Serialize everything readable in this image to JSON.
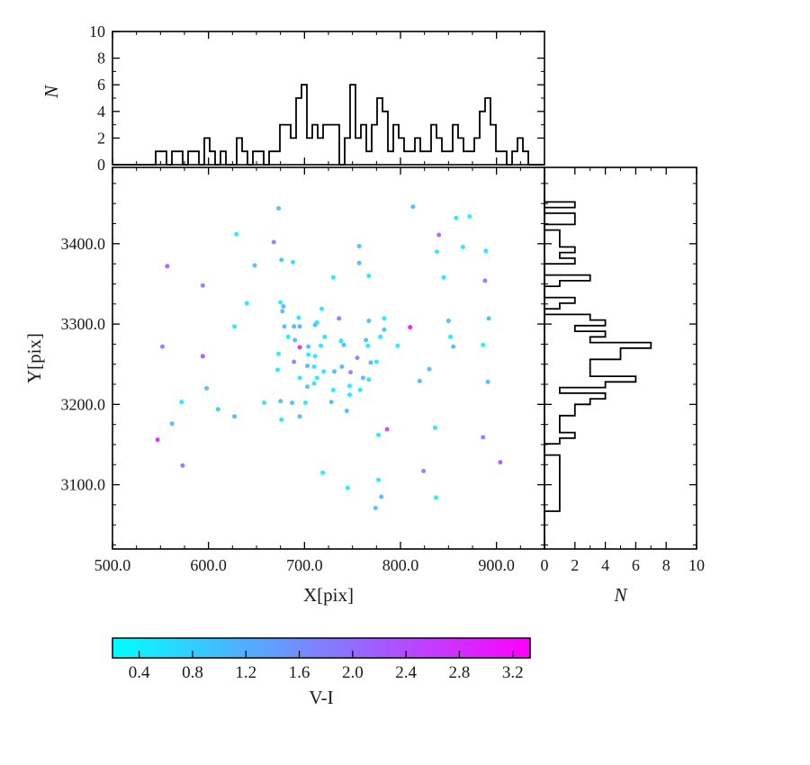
{
  "figure": {
    "background": "#ffffff",
    "line_color": "#000000"
  },
  "chart_data": [
    {
      "id": "top-histogram",
      "type": "bar",
      "subtype": "histogram-step",
      "orientation": "vertical",
      "ylabel": "N",
      "xlim": [
        500,
        950
      ],
      "ylim": [
        0,
        10
      ],
      "yticks": [
        0,
        2,
        4,
        6,
        8,
        10
      ],
      "ytick_labels": [
        "0",
        "2",
        "4",
        "6",
        "8",
        "10"
      ],
      "minor_step_x": 25,
      "minor_step_y": 1,
      "bin_start": 500,
      "bin_width": 5.625,
      "counts": [
        0,
        0,
        0,
        0,
        0,
        0,
        0,
        0,
        1,
        1,
        0,
        1,
        1,
        0,
        1,
        1,
        0,
        2,
        1,
        0,
        1,
        0,
        0,
        2,
        1,
        0,
        1,
        1,
        0,
        1,
        1,
        3,
        3,
        2,
        5,
        6,
        2,
        3,
        2,
        3,
        3,
        3,
        0,
        2,
        6,
        2,
        3,
        1,
        3,
        5,
        4,
        1,
        3,
        2,
        1,
        1,
        2,
        1,
        1,
        3,
        2,
        1,
        1,
        3,
        2,
        1,
        1,
        2,
        4,
        5,
        3,
        1,
        1,
        0,
        1,
        2,
        1,
        0,
        0,
        0
      ]
    },
    {
      "id": "main-scatter",
      "type": "scatter",
      "xlabel": "X[pix]",
      "ylabel": "Y[pix]",
      "xlim": [
        500,
        950
      ],
      "ylim": [
        3020,
        3495
      ],
      "xticks": [
        500,
        600,
        700,
        800,
        900
      ],
      "xtick_labels": [
        "500.0",
        "600.0",
        "700.0",
        "800.0",
        "900.0"
      ],
      "yticks": [
        3100,
        3200,
        3300,
        3400
      ],
      "ytick_labels": [
        "3100.0",
        "3200.0",
        "3300.0",
        "3400.0"
      ],
      "minor_step_x": 25,
      "minor_step_y": 25,
      "colormap": "cool",
      "color_range": [
        0.2,
        3.33
      ],
      "marker_radius": 2.5,
      "points": [
        [
          673,
          3444,
          0.95
        ],
        [
          813,
          3446,
          1.1
        ],
        [
          858,
          3432,
          0.4
        ],
        [
          872,
          3434,
          0.45
        ],
        [
          629,
          3412,
          0.5
        ],
        [
          668,
          3402,
          1.9
        ],
        [
          840,
          3411,
          2.15
        ],
        [
          757,
          3397,
          1.0
        ],
        [
          865,
          3396,
          0.5
        ],
        [
          838,
          3390,
          0.45
        ],
        [
          889,
          3391,
          0.55
        ],
        [
          557,
          3372,
          2.3
        ],
        [
          648,
          3373,
          1.05
        ],
        [
          676,
          3380,
          1.0
        ],
        [
          688,
          3377,
          0.5
        ],
        [
          757,
          3376,
          1.1
        ],
        [
          730,
          3358,
          0.5
        ],
        [
          767,
          3360,
          0.45
        ],
        [
          845,
          3358,
          0.5
        ],
        [
          888,
          3354,
          1.9
        ],
        [
          594,
          3348,
          1.85
        ],
        [
          640,
          3326,
          0.5
        ],
        [
          678,
          3322,
          1.1
        ],
        [
          627,
          3297,
          0.5
        ],
        [
          713,
          3302,
          0.5
        ],
        [
          850,
          3304,
          1.05
        ],
        [
          892,
          3307,
          1.0
        ],
        [
          852,
          3284,
          0.5
        ],
        [
          855,
          3272,
          1.1
        ],
        [
          886,
          3274,
          0.5
        ],
        [
          552,
          3272,
          1.9
        ],
        [
          675,
          3327,
          0.4
        ],
        [
          677,
          3316,
          1.1
        ],
        [
          718,
          3319,
          0.45
        ],
        [
          694,
          3308,
          0.5
        ],
        [
          736,
          3307,
          1.9
        ],
        [
          679,
          3297,
          1.05
        ],
        [
          689,
          3297,
          1.1
        ],
        [
          695,
          3297,
          1.15
        ],
        [
          711,
          3299,
          1.0
        ],
        [
          767,
          3304,
          1.1
        ],
        [
          783,
          3307,
          0.5
        ],
        [
          810,
          3296,
          3.25
        ],
        [
          783,
          3293,
          1.0
        ],
        [
          683,
          3284,
          0.45
        ],
        [
          690,
          3280,
          1.1
        ],
        [
          721,
          3284,
          0.5
        ],
        [
          738,
          3279,
          0.45
        ],
        [
          764,
          3280,
          1.0
        ],
        [
          779,
          3284,
          0.5
        ],
        [
          695,
          3271,
          2.9
        ],
        [
          704,
          3272,
          1.0
        ],
        [
          717,
          3273,
          0.5
        ],
        [
          741,
          3274,
          1.05
        ],
        [
          766,
          3273,
          0.45
        ],
        [
          797,
          3273,
          0.5
        ],
        [
          673,
          3263,
          0.4
        ],
        [
          704,
          3262,
          0.5
        ],
        [
          711,
          3260,
          0.45
        ],
        [
          755,
          3258,
          1.8
        ],
        [
          769,
          3252,
          1.1
        ],
        [
          775,
          3253,
          0.5
        ],
        [
          689,
          3253,
          1.85
        ],
        [
          703,
          3248,
          1.1
        ],
        [
          672,
          3243,
          0.45
        ],
        [
          710,
          3247,
          0.5
        ],
        [
          720,
          3241,
          0.45
        ],
        [
          731,
          3241,
          1.05
        ],
        [
          739,
          3247,
          1.1
        ],
        [
          748,
          3240,
          1.8
        ],
        [
          761,
          3233,
          1.0
        ],
        [
          767,
          3231,
          0.5
        ],
        [
          695,
          3233,
          0.45
        ],
        [
          713,
          3233,
          0.5
        ],
        [
          830,
          3244,
          1.1
        ],
        [
          703,
          3222,
          1.05
        ],
        [
          710,
          3226,
          0.5
        ],
        [
          747,
          3223,
          0.45
        ],
        [
          758,
          3218,
          0.5
        ],
        [
          820,
          3229,
          1.1
        ],
        [
          730,
          3218,
          0.45
        ],
        [
          747,
          3212,
          0.5
        ],
        [
          701,
          3202,
          0.5
        ],
        [
          687,
          3202,
          1.0
        ],
        [
          728,
          3203,
          1.1
        ],
        [
          744,
          3192,
          1.05
        ],
        [
          695,
          3185,
          1.1
        ],
        [
          676,
          3181,
          0.5
        ],
        [
          786,
          3169,
          2.5
        ],
        [
          836,
          3171,
          0.5
        ],
        [
          891,
          3228,
          1.1
        ],
        [
          886,
          3159,
          1.9
        ],
        [
          904,
          3128,
          2.4
        ],
        [
          824,
          3117,
          1.9
        ],
        [
          777,
          3162,
          0.5
        ],
        [
          777,
          3106,
          0.5
        ],
        [
          745,
          3096,
          0.45
        ],
        [
          780,
          3085,
          1.1
        ],
        [
          774,
          3071,
          1.0
        ],
        [
          837,
          3084,
          0.5
        ],
        [
          719,
          3115,
          0.5
        ],
        [
          598,
          3220,
          1.0
        ],
        [
          572,
          3203,
          0.6
        ],
        [
          610,
          3194,
          0.9
        ],
        [
          627,
          3185,
          1.1
        ],
        [
          658,
          3202,
          0.6
        ],
        [
          562,
          3176,
          1.05
        ],
        [
          547,
          3156,
          2.9
        ],
        [
          573,
          3124,
          2.0
        ],
        [
          675,
          3204,
          1.0
        ],
        [
          594,
          3260,
          2.5
        ]
      ]
    },
    {
      "id": "right-histogram",
      "type": "bar",
      "subtype": "histogram-step",
      "orientation": "horizontal",
      "xlabel": "N",
      "xlim": [
        0,
        10
      ],
      "ylim": [
        3020,
        3495
      ],
      "xticks": [
        0,
        2,
        4,
        6,
        8,
        10
      ],
      "xtick_labels": [
        "0",
        "2",
        "4",
        "6",
        "8",
        "10"
      ],
      "minor_step_x": 1,
      "minor_step_y": 25,
      "bin_start": 3060,
      "bin_width": 7,
      "counts": [
        0,
        1,
        1,
        1,
        1,
        1,
        1,
        1,
        1,
        1,
        1,
        0,
        0,
        1,
        2,
        1,
        1,
        1,
        2,
        2,
        3,
        4,
        1,
        4,
        6,
        3,
        3,
        3,
        5,
        5,
        7,
        3,
        4,
        2,
        4,
        3,
        0,
        1,
        2,
        0,
        0,
        1,
        3,
        0,
        0,
        2,
        1,
        2,
        1,
        1,
        1,
        0,
        2,
        2,
        0,
        2,
        0
      ]
    },
    {
      "id": "colorbar",
      "type": "colorbar",
      "label": "V-I",
      "range": [
        0.2,
        3.33
      ],
      "ticks": [
        0.4,
        0.8,
        1.2,
        1.6,
        2.0,
        2.4,
        2.8,
        3.2
      ],
      "tick_labels": [
        "0.4",
        "0.8",
        "1.2",
        "1.6",
        "2.0",
        "2.4",
        "2.8",
        "3.2"
      ],
      "start_color": "#00ffff",
      "end_color": "#ff00ff"
    }
  ]
}
